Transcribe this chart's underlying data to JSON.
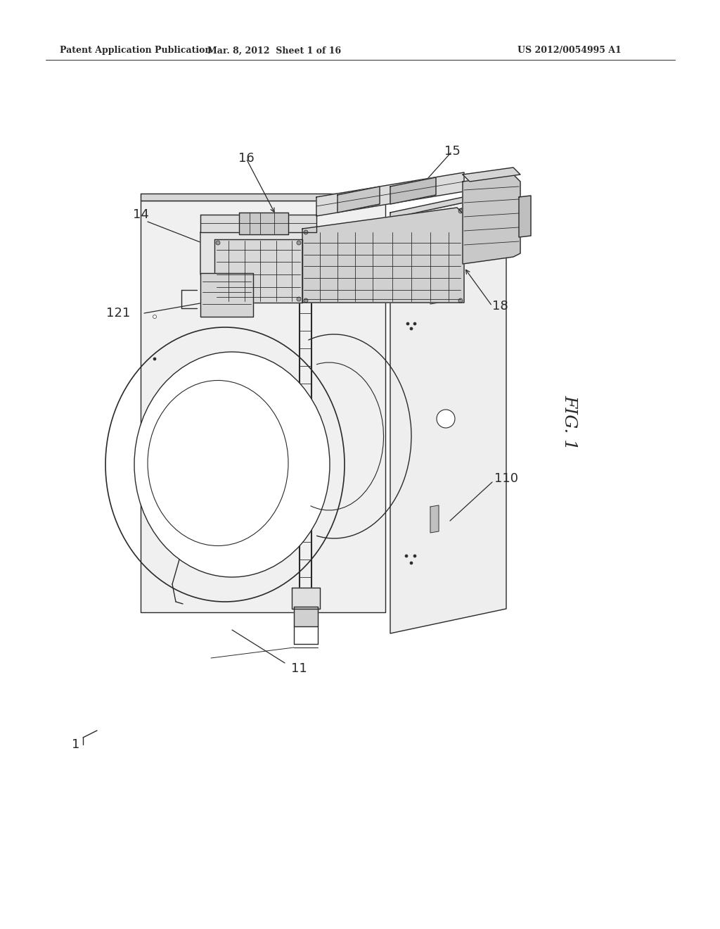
{
  "bg_color": "#ffffff",
  "line_color": "#2a2a2a",
  "header_left": "Patent Application Publication",
  "header_mid": "Mar. 8, 2012  Sheet 1 of 16",
  "header_right": "US 2012/0054995 A1",
  "fig_label": "FIG. 1",
  "lw": 1.0,
  "lw_thick": 1.5,
  "lw_thin": 0.6
}
